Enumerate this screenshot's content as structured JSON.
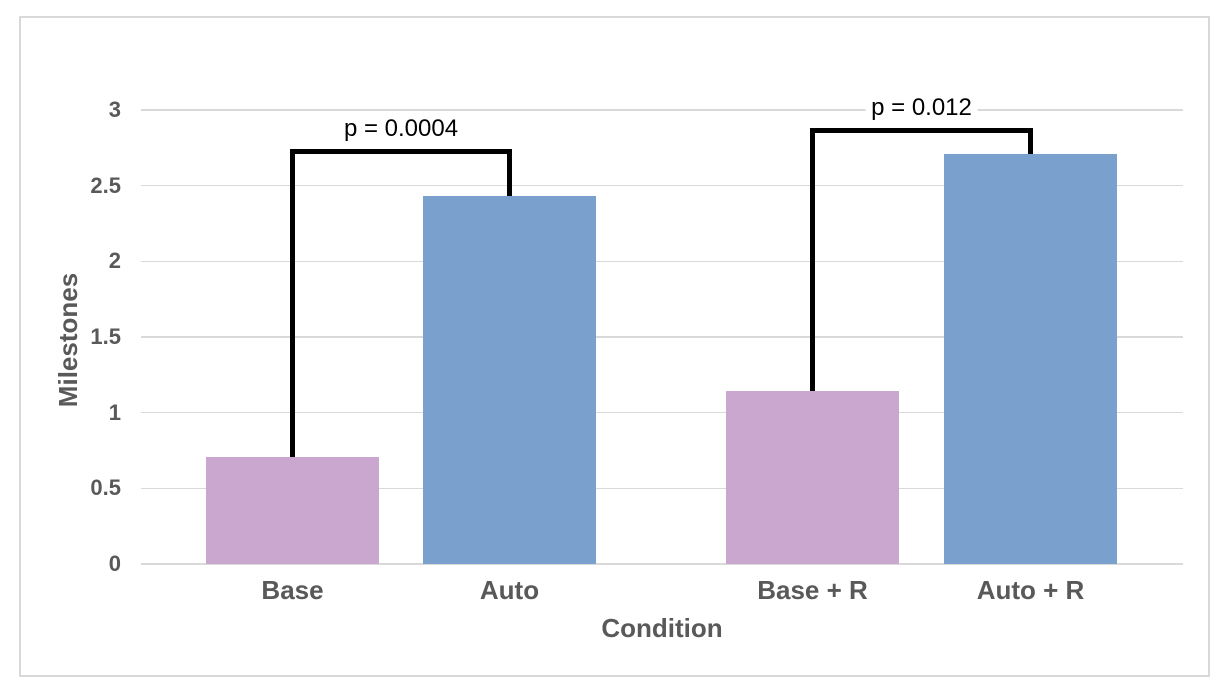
{
  "chart_data": {
    "type": "bar",
    "title": "",
    "xlabel": "Condition",
    "ylabel": "Milestones",
    "categories": [
      "Base",
      "Auto",
      "Base + R",
      "Auto + R"
    ],
    "values": [
      0.71,
      2.43,
      1.14,
      2.71
    ],
    "bar_colors": [
      "#c9a7ce",
      "#7aa0cd",
      "#c9a7ce",
      "#7aa0cd"
    ],
    "ylim": [
      0,
      3
    ],
    "ytick_step": 0.5,
    "ytick_labels": [
      "0",
      "0.5",
      "1",
      "1.5",
      "2",
      "2.5",
      "3"
    ],
    "grid": "horizontal",
    "legend": "none",
    "significance_brackets": [
      {
        "from": "Base",
        "to": "Auto",
        "label": "p = 0.0004",
        "top_value": 2.74
      },
      {
        "from": "Base + R",
        "to": "Auto + R",
        "label": "p = 0.012",
        "top_value": 2.88
      }
    ],
    "colors": {
      "grid": "#d9d9d9",
      "figure_border": "#d9d9d9",
      "axis_text": "#595959",
      "bracket": "#000000",
      "annotation_text": "#000000",
      "background": "#ffffff"
    }
  }
}
